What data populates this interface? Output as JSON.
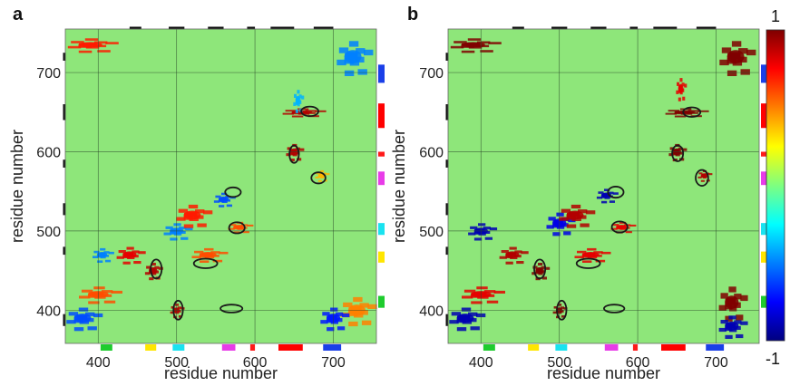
{
  "colors": {
    "background": "#8ee67a",
    "grid": "#2b4a2b",
    "ellipse": "#1a1a1a"
  },
  "chart_data": [
    {
      "type": "heatmap",
      "panel_label": "a",
      "xlabel": "residue number",
      "ylabel": "residue number",
      "xlim": [
        358,
        755
      ],
      "ylim": [
        358,
        755
      ],
      "x_ticks": [
        400,
        500,
        600,
        700
      ],
      "y_ticks": [
        400,
        500,
        600,
        700
      ],
      "x_tick_labels": [
        "400",
        "500",
        "600",
        "700"
      ],
      "y_tick_labels": [
        "400",
        "500",
        "600",
        "700"
      ],
      "color_range": [
        -1,
        1
      ],
      "features": [
        {
          "x": 400,
          "y": 420,
          "w": 60,
          "h": 30,
          "value": 0.6
        },
        {
          "x": 405,
          "y": 470,
          "w": 30,
          "h": 25,
          "value": -0.5
        },
        {
          "x": 440,
          "y": 470,
          "w": 40,
          "h": 30,
          "value": 0.8
        },
        {
          "x": 470,
          "y": 450,
          "w": 25,
          "h": 30,
          "value": 0.9
        },
        {
          "x": 500,
          "y": 500,
          "w": 40,
          "h": 30,
          "value": -0.5
        },
        {
          "x": 520,
          "y": 520,
          "w": 50,
          "h": 40,
          "value": 0.7
        },
        {
          "x": 540,
          "y": 470,
          "w": 50,
          "h": 25,
          "value": 0.6
        },
        {
          "x": 560,
          "y": 540,
          "w": 30,
          "h": 25,
          "value": -0.6
        },
        {
          "x": 580,
          "y": 505,
          "w": 35,
          "h": 20,
          "value": 0.6
        },
        {
          "x": 650,
          "y": 600,
          "w": 25,
          "h": 30,
          "value": 0.9
        },
        {
          "x": 660,
          "y": 650,
          "w": 60,
          "h": 15,
          "value": 0.9
        },
        {
          "x": 655,
          "y": 665,
          "w": 15,
          "h": 40,
          "value": -0.4
        },
        {
          "x": 685,
          "y": 570,
          "w": 20,
          "h": 20,
          "value": 0.4
        },
        {
          "x": 390,
          "y": 735,
          "w": 70,
          "h": 25,
          "value": 0.7
        },
        {
          "x": 725,
          "y": 720,
          "w": 50,
          "h": 60,
          "value": -0.5
        },
        {
          "x": 380,
          "y": 390,
          "w": 50,
          "h": 40,
          "value": -0.6
        },
        {
          "x": 730,
          "y": 400,
          "w": 50,
          "h": 50,
          "value": 0.5
        },
        {
          "x": 700,
          "y": 390,
          "w": 40,
          "h": 40,
          "value": -0.7
        },
        {
          "x": 500,
          "y": 400,
          "w": 20,
          "h": 25,
          "value": 0.9
        }
      ],
      "ellipses": [
        {
          "x": 474,
          "y": 452,
          "rx": 7,
          "ry": 12
        },
        {
          "x": 502,
          "y": 400,
          "rx": 6,
          "ry": 12
        },
        {
          "x": 537,
          "y": 459,
          "rx": 15,
          "ry": 6
        },
        {
          "x": 570,
          "y": 402,
          "rx": 14,
          "ry": 5
        },
        {
          "x": 572,
          "y": 549,
          "rx": 10,
          "ry": 6
        },
        {
          "x": 577,
          "y": 504,
          "rx": 10,
          "ry": 7
        },
        {
          "x": 650,
          "y": 597,
          "rx": 6,
          "ry": 11
        },
        {
          "x": 681,
          "y": 567,
          "rx": 9,
          "ry": 7
        },
        {
          "x": 670,
          "y": 651,
          "rx": 11,
          "ry": 6
        }
      ]
    },
    {
      "type": "heatmap",
      "panel_label": "b",
      "xlabel": "residue number",
      "ylabel": "residue number",
      "xlim": [
        358,
        755
      ],
      "ylim": [
        358,
        755
      ],
      "x_ticks": [
        400,
        500,
        600,
        700
      ],
      "y_ticks": [
        400,
        500,
        600,
        700
      ],
      "x_tick_labels": [
        "400",
        "500",
        "600",
        "700"
      ],
      "y_tick_labels": [
        "400",
        "500",
        "600",
        "700"
      ],
      "color_range": [
        -1,
        1
      ],
      "features": [
        {
          "x": 400,
          "y": 420,
          "w": 60,
          "h": 30,
          "value": 0.8
        },
        {
          "x": 400,
          "y": 500,
          "w": 40,
          "h": 30,
          "value": -0.9
        },
        {
          "x": 440,
          "y": 470,
          "w": 40,
          "h": 30,
          "value": 0.9
        },
        {
          "x": 475,
          "y": 450,
          "w": 25,
          "h": 30,
          "value": 1.0
        },
        {
          "x": 500,
          "y": 510,
          "w": 40,
          "h": 40,
          "value": -0.8
        },
        {
          "x": 520,
          "y": 520,
          "w": 50,
          "h": 40,
          "value": 0.9
        },
        {
          "x": 540,
          "y": 470,
          "w": 50,
          "h": 25,
          "value": 0.8
        },
        {
          "x": 560,
          "y": 545,
          "w": 30,
          "h": 25,
          "value": -0.9
        },
        {
          "x": 580,
          "y": 505,
          "w": 35,
          "h": 20,
          "value": 0.8
        },
        {
          "x": 650,
          "y": 600,
          "w": 25,
          "h": 30,
          "value": 1.0
        },
        {
          "x": 660,
          "y": 650,
          "w": 60,
          "h": 15,
          "value": 1.0
        },
        {
          "x": 655,
          "y": 680,
          "w": 15,
          "h": 40,
          "value": 0.8
        },
        {
          "x": 685,
          "y": 570,
          "w": 20,
          "h": 20,
          "value": 0.9
        },
        {
          "x": 390,
          "y": 735,
          "w": 70,
          "h": 25,
          "value": 1.0
        },
        {
          "x": 725,
          "y": 720,
          "w": 50,
          "h": 60,
          "value": 1.0
        },
        {
          "x": 380,
          "y": 390,
          "w": 50,
          "h": 40,
          "value": -0.9
        },
        {
          "x": 720,
          "y": 410,
          "w": 40,
          "h": 60,
          "value": 1.0
        },
        {
          "x": 720,
          "y": 380,
          "w": 40,
          "h": 40,
          "value": -0.9
        },
        {
          "x": 500,
          "y": 400,
          "w": 20,
          "h": 25,
          "value": 1.0
        }
      ],
      "ellipses": [
        {
          "x": 475,
          "y": 452,
          "rx": 7,
          "ry": 12
        },
        {
          "x": 503,
          "y": 400,
          "rx": 6,
          "ry": 12
        },
        {
          "x": 537,
          "y": 459,
          "rx": 15,
          "ry": 6
        },
        {
          "x": 570,
          "y": 402,
          "rx": 13,
          "ry": 5
        },
        {
          "x": 572,
          "y": 549,
          "rx": 10,
          "ry": 7
        },
        {
          "x": 577,
          "y": 505,
          "rx": 10,
          "ry": 7
        },
        {
          "x": 651,
          "y": 598,
          "rx": 7,
          "ry": 10
        },
        {
          "x": 682,
          "y": 567,
          "rx": 8,
          "ry": 10
        },
        {
          "x": 669,
          "y": 650,
          "rx": 11,
          "ry": 6
        }
      ]
    }
  ],
  "domain_bars": [
    {
      "start": 403,
      "end": 418,
      "color": "#1ecc2e"
    },
    {
      "start": 460,
      "end": 474,
      "color": "#ffe600"
    },
    {
      "start": 495,
      "end": 510,
      "color": "#19e3f0"
    },
    {
      "start": 558,
      "end": 575,
      "color": "#e83ce8"
    },
    {
      "start": 594,
      "end": 600,
      "color": "#ff1a1a"
    },
    {
      "start": 630,
      "end": 661,
      "color": "#ff0000"
    },
    {
      "start": 687,
      "end": 710,
      "color": "#1a3fe8"
    }
  ],
  "colorbar": {
    "min_label": "-1",
    "max_label": "1",
    "colors": [
      "#00007f",
      "#0000ff",
      "#007fff",
      "#00ffff",
      "#7fff7f",
      "#ffff00",
      "#ff7f00",
      "#ff0000",
      "#7f0000"
    ]
  }
}
